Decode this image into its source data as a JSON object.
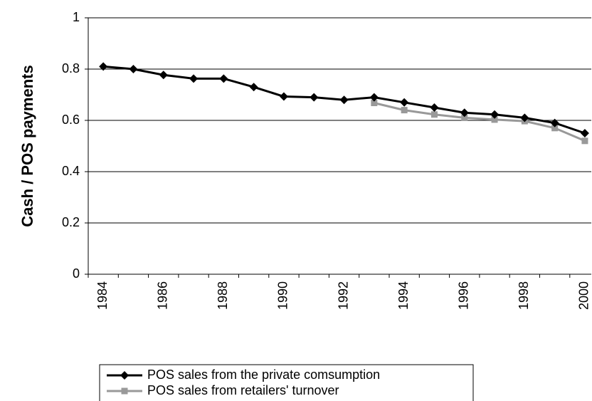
{
  "chart_data": {
    "type": "line",
    "y_label": "Cash / POS payments",
    "categories": [
      "1984",
      null,
      "1986",
      null,
      "1988",
      null,
      "1990",
      null,
      "1992",
      null,
      "1994",
      null,
      "1996",
      null,
      "1998",
      null,
      "2000"
    ],
    "series": [
      {
        "name": "POS sales from the private comsumption",
        "color": "#000000",
        "marker": "diamond",
        "values": [
          0.81,
          0.8,
          0.777,
          0.763,
          0.763,
          0.73,
          0.693,
          0.69,
          0.68,
          0.69,
          0.67,
          0.65,
          0.63,
          0.623,
          0.61,
          0.59,
          0.55
        ]
      },
      {
        "name": "POS sales from retailers' turnover",
        "color": "#999999",
        "marker": "square",
        "values": [
          null,
          null,
          null,
          null,
          null,
          null,
          null,
          null,
          null,
          0.668,
          0.64,
          0.623,
          0.61,
          0.603,
          0.597,
          0.57,
          0.52
        ]
      }
    ],
    "ylim": [
      0,
      1
    ],
    "yticks": [
      0,
      0.2,
      0.4,
      0.6,
      0.8,
      1
    ],
    "grid": true,
    "legend": "bottom"
  }
}
